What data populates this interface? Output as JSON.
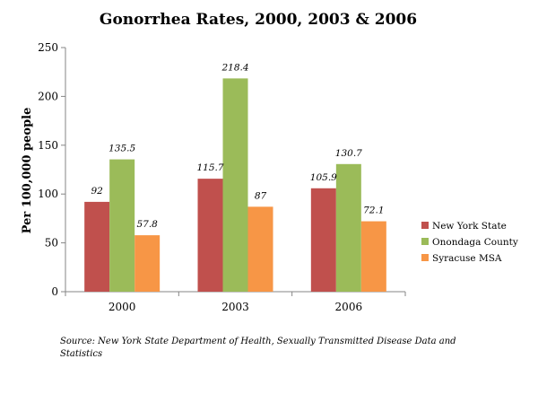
{
  "chart_data": {
    "type": "bar",
    "title": "Gonorrhea Rates, 2000, 2003 & 2006",
    "ylabel": "Per 100,000 people",
    "xlabel": "",
    "categories": [
      "2000",
      "2003",
      "2006"
    ],
    "ylim": [
      0,
      250
    ],
    "yticks": [
      0,
      50,
      100,
      150,
      200,
      250
    ],
    "grid": false,
    "legend_position": "right",
    "series": [
      {
        "name": "New York State",
        "color": "#C0504D",
        "values": [
          92,
          115.7,
          105.9
        ],
        "labels": [
          "92",
          "115.7",
          "105.9"
        ]
      },
      {
        "name": "Onondaga County",
        "color": "#9BBB59",
        "values": [
          135.5,
          218.4,
          130.7
        ],
        "labels": [
          "135.5",
          "218.4",
          "130.7"
        ]
      },
      {
        "name": "Syracuse MSA",
        "color": "#F79646",
        "values": [
          57.8,
          87,
          72.1
        ],
        "labels": [
          "57.8",
          "87",
          "72.1"
        ]
      }
    ]
  },
  "source": "Source: New York State Department of Health, Sexually Transmitted Disease Data and Statistics"
}
